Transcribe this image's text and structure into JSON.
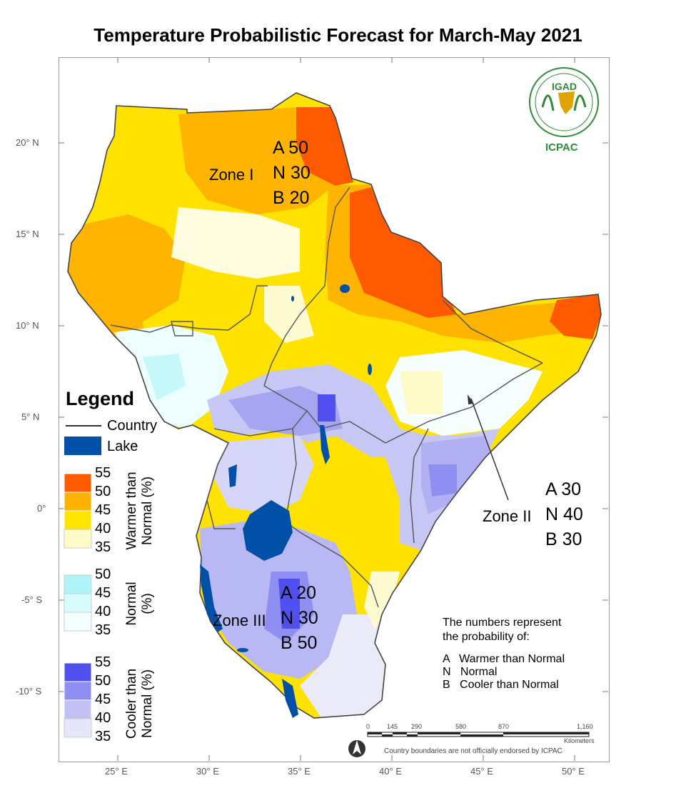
{
  "title": "Temperature Probabilistic Forecast for March-May 2021",
  "lat_labels": [
    "20° N",
    "15° N",
    "10° N",
    "5° N",
    "0°",
    "-5° S",
    "-10° S"
  ],
  "lon_labels": [
    "25° E",
    "30° E",
    "35° E",
    "40° E",
    "45° E",
    "50° E"
  ],
  "legend": {
    "title": "Legend",
    "country": "Country",
    "lake": "Lake",
    "warmer_label": "Warmer than\nNormal (%)",
    "normal_label": "Normal\n(%)",
    "cooler_label": "Cooler than\nNormal (%)",
    "warmer_values": [
      "55",
      "50",
      "45",
      "40",
      "35"
    ],
    "normal_values": [
      "50",
      "45",
      "40",
      "35"
    ],
    "cooler_values": [
      "55",
      "50",
      "45",
      "40",
      "35"
    ],
    "warmer_colors": [
      "#ff5a00",
      "#ffb300",
      "#ffe400",
      "#fffbc8"
    ],
    "normal_colors": [
      "#aef4f8",
      "#d8fbfb",
      "#f4fefe"
    ],
    "cooler_colors": [
      "#5050f0",
      "#8f8ff2",
      "#c1c1f4",
      "#e6e6fb"
    ],
    "lake_color": "#0050a8"
  },
  "zones": {
    "zone1": {
      "name": "Zone I",
      "a": "A 50",
      "n": "N 30",
      "b": "B 20"
    },
    "zone2": {
      "name": "Zone II",
      "a": "A 30",
      "n": "N 40",
      "b": "B 30"
    },
    "zone3": {
      "name": "Zone III",
      "a": "A 20",
      "n": "N 30",
      "b": "B 50"
    }
  },
  "note": {
    "line1": "The numbers represent",
    "line2": "the probability of:",
    "a": "A   Warmer than Normal",
    "n": "N   Normal",
    "b": "B   Cooler than Normal"
  },
  "scale": {
    "ticks": [
      "0",
      "145",
      "290",
      "580",
      "870",
      "1,160"
    ],
    "unit": "Kilometers"
  },
  "disclaimer": "Country boundaries are not officially endorsed by ICPAC",
  "logo": {
    "igad": "IGAD",
    "icpac": "ICPAC"
  }
}
